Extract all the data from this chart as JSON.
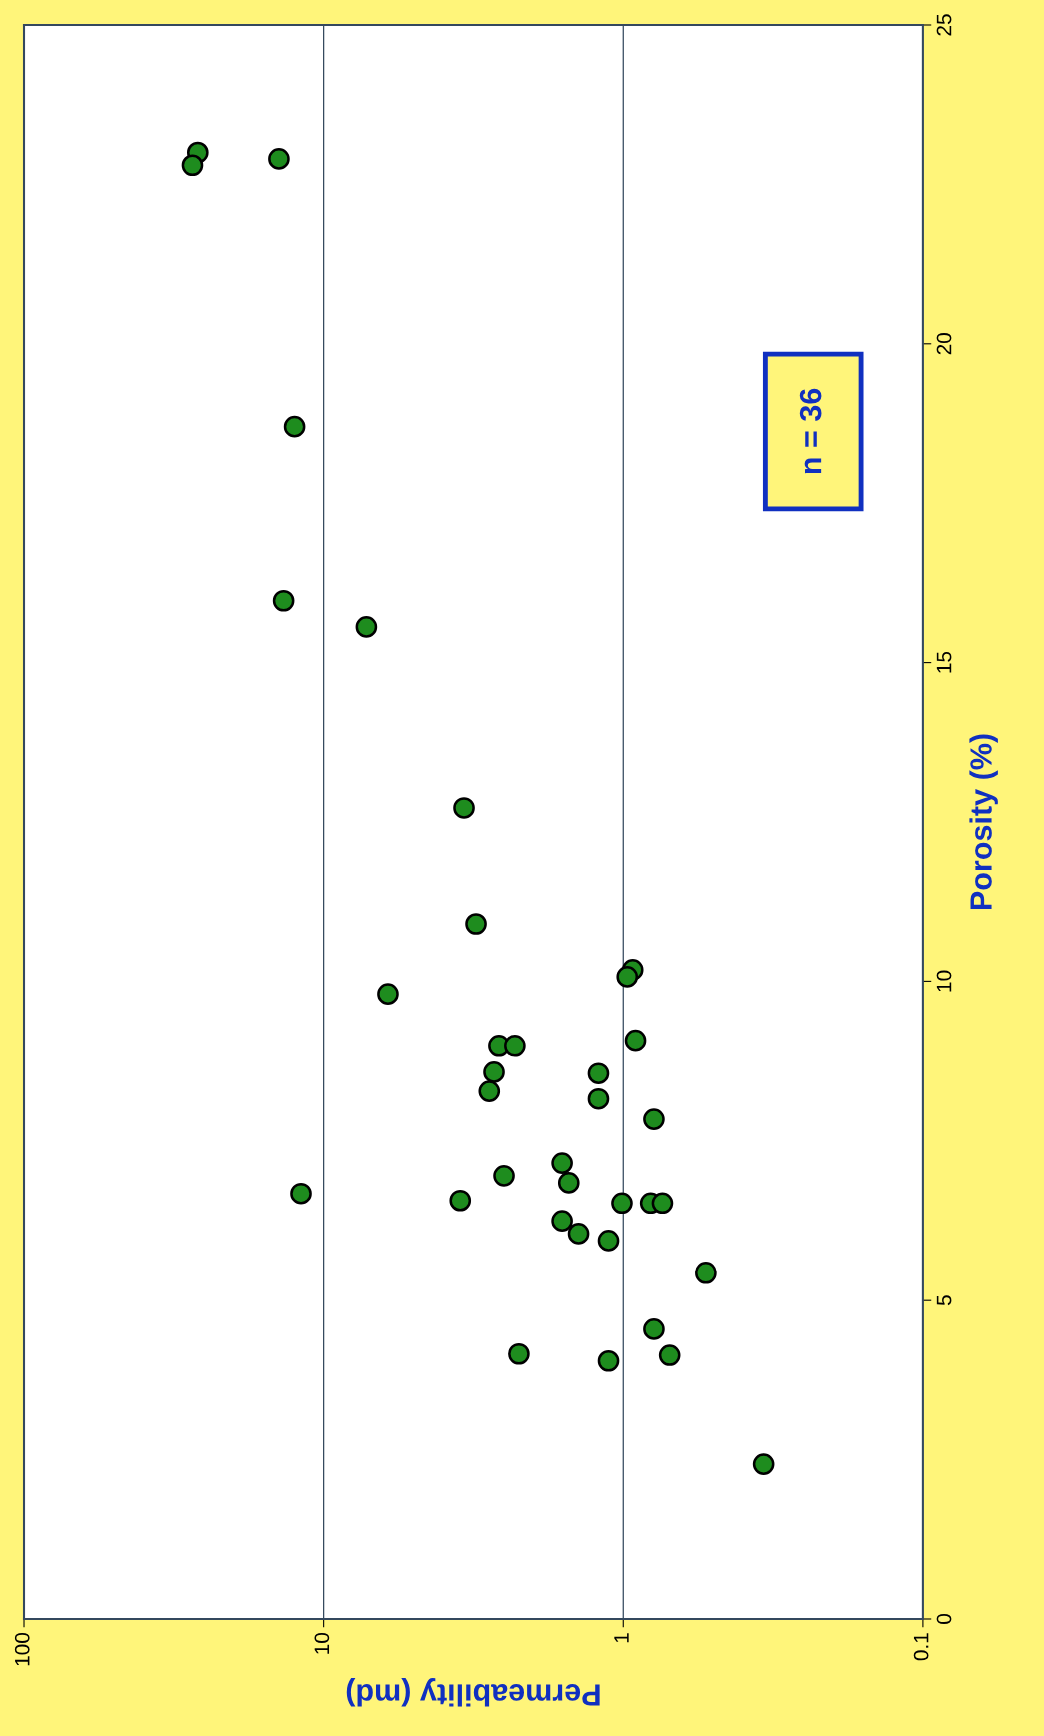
{
  "chart_data": {
    "type": "scatter",
    "xlabel": "Permeability (md)",
    "ylabel": "Porosity (%)",
    "x": [
      26.3,
      27.4,
      14.1,
      12.5,
      13.6,
      7.2,
      3.4,
      3.1,
      0.93,
      0.97,
      6.1,
      2.6,
      2.3,
      0.91,
      2.7,
      1.21,
      2.8,
      1.21,
      0.79,
      1.6,
      2.5,
      1.52,
      11.9,
      3.5,
      1.01,
      0.81,
      0.74,
      1.6,
      1.41,
      1.12,
      0.53,
      0.79,
      2.23,
      0.7,
      1.12,
      0.34
    ],
    "series": [
      {
        "color": "#1e8c1e",
        "values": [
          23.0,
          22.8,
          22.9,
          18.7,
          15.97,
          15.56,
          12.72,
          10.9,
          10.18,
          10.07,
          9.8,
          8.99,
          8.99,
          9.07,
          8.58,
          8.56,
          8.28,
          8.16,
          7.84,
          7.15,
          6.95,
          6.84,
          6.67,
          6.56,
          6.52,
          6.52,
          6.52,
          6.24,
          6.04,
          5.93,
          5.43,
          4.55,
          4.16,
          4.14,
          4.05,
          2.43
        ]
      }
    ],
    "log": "x",
    "xlim": [
      100,
      0.1
    ],
    "xticks": [
      100,
      10,
      1,
      0.1
    ],
    "ylim": [
      0,
      25
    ],
    "yticks": [
      0,
      5,
      10,
      15,
      20,
      25
    ],
    "grid": "x",
    "marker": "circle",
    "annotations": [
      "n = 36"
    ]
  }
}
